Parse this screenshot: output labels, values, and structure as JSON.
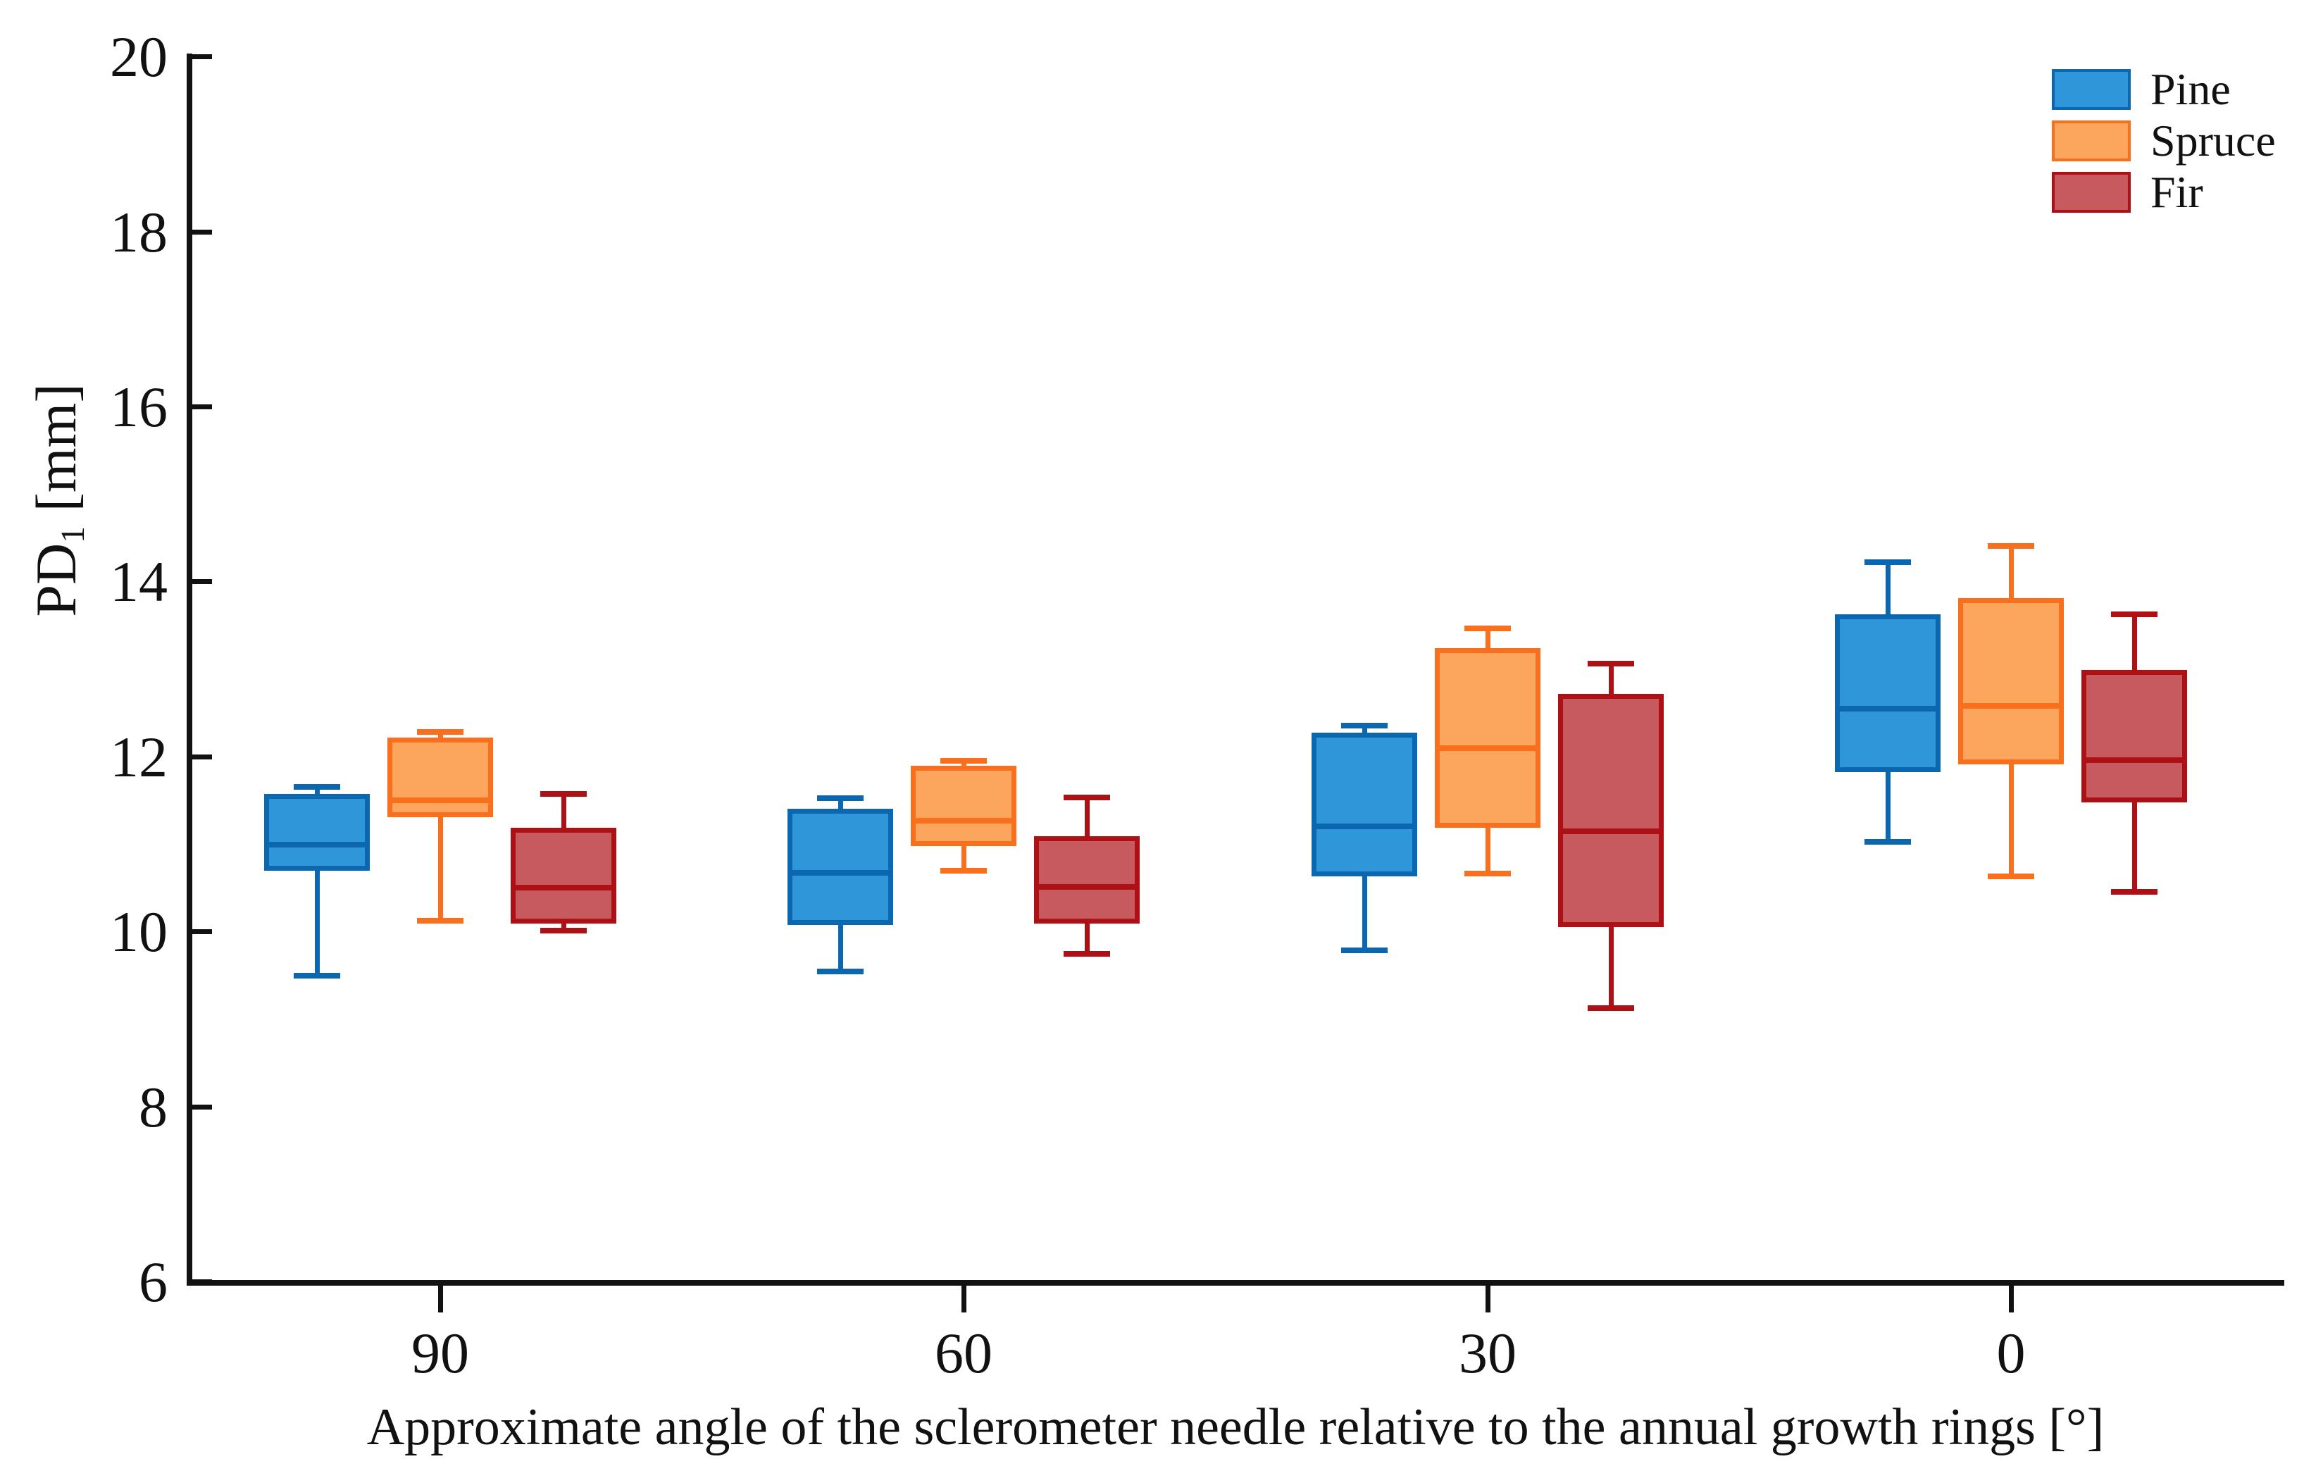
{
  "y_axis": {
    "title": "PD1 [mm]",
    "title_main": "PD",
    "title_sub": "1",
    "title_unit": " [mm]",
    "ticks": [
      6,
      8,
      10,
      12,
      14,
      16,
      18,
      20
    ],
    "range": [
      6,
      20
    ]
  },
  "x_axis": {
    "title": "Approximate angle of the sclerometer needle relative to the annual growth rings [°]",
    "categories": [
      "90",
      "60",
      "30",
      "0"
    ]
  },
  "legend": {
    "position": "top-right",
    "items": [
      {
        "label": "Pine",
        "fill": "#2E96D9",
        "border": "#0B68B0"
      },
      {
        "label": "Spruce",
        "fill": "#FCA55D",
        "border": "#F8701E"
      },
      {
        "label": "Fir",
        "fill": "#C65A5E",
        "border": "#AD1015"
      }
    ]
  },
  "chart_data": {
    "type": "box",
    "title": "",
    "xlabel": "Approximate angle of the sclerometer needle relative to the annual growth rings [°]",
    "ylabel": "PD1 [mm]",
    "ylim": [
      6,
      20
    ],
    "grid": false,
    "legend_position": "top-right",
    "categories": [
      "90",
      "60",
      "30",
      "0"
    ],
    "series": [
      {
        "name": "Pine",
        "fill": "#2E96D9",
        "border": "#0B68B0",
        "boxes": [
          {
            "whisker_low": 9.5,
            "q1": 10.7,
            "median": 11.0,
            "q3": 11.58,
            "whisker_high": 11.66
          },
          {
            "whisker_low": 9.55,
            "q1": 10.08,
            "median": 10.68,
            "q3": 11.41,
            "whisker_high": 11.53
          },
          {
            "whisker_low": 9.79,
            "q1": 10.64,
            "median": 11.21,
            "q3": 12.28,
            "whisker_high": 12.36
          },
          {
            "whisker_low": 11.03,
            "q1": 11.83,
            "median": 12.55,
            "q3": 13.63,
            "whisker_high": 14.23
          }
        ]
      },
      {
        "name": "Spruce",
        "fill": "#FCA55D",
        "border": "#F8701E",
        "boxes": [
          {
            "whisker_low": 10.13,
            "q1": 11.31,
            "median": 11.51,
            "q3": 12.22,
            "whisker_high": 12.29
          },
          {
            "whisker_low": 10.7,
            "q1": 10.98,
            "median": 11.27,
            "q3": 11.9,
            "whisker_high": 11.96
          },
          {
            "whisker_low": 10.67,
            "q1": 11.19,
            "median": 12.1,
            "q3": 13.25,
            "whisker_high": 13.47
          },
          {
            "whisker_low": 10.64,
            "q1": 11.92,
            "median": 12.59,
            "q3": 13.82,
            "whisker_high": 14.41
          }
        ]
      },
      {
        "name": "Fir",
        "fill": "#C65A5E",
        "border": "#AD1015",
        "boxes": [
          {
            "whisker_low": 10.02,
            "q1": 10.1,
            "median": 10.51,
            "q3": 11.19,
            "whisker_high": 11.58
          },
          {
            "whisker_low": 9.75,
            "q1": 10.1,
            "median": 10.52,
            "q3": 11.1,
            "whisker_high": 11.54
          },
          {
            "whisker_low": 9.13,
            "q1": 10.06,
            "median": 11.15,
            "q3": 12.72,
            "whisker_high": 13.07
          },
          {
            "whisker_low": 10.46,
            "q1": 11.48,
            "median": 11.97,
            "q3": 13.0,
            "whisker_high": 13.63
          }
        ]
      }
    ]
  }
}
